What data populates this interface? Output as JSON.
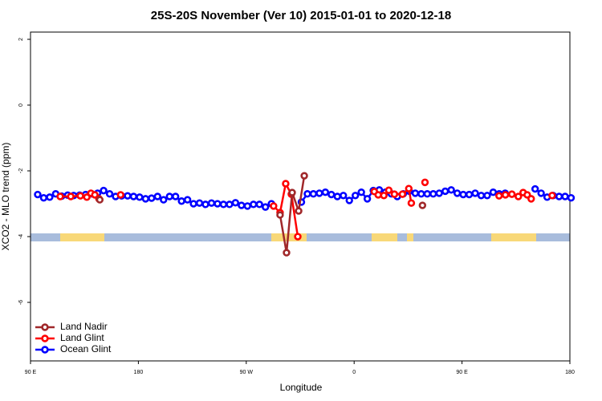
{
  "chart_data": {
    "type": "line",
    "title": "25S-20S November (Ver 10)   2015-01-01 to 2020-12-18",
    "x_label": "Longitude",
    "y_label": "XCO2 - MLO trend (ppm)",
    "xlim": [
      90,
      540
    ],
    "ylim": [
      -7.78,
      2.22
    ],
    "xticks": [
      {
        "value": 90,
        "label": "90 E"
      },
      180,
      {
        "value": 270,
        "label": "90 W"
      },
      {
        "value": 360,
        "label": "0"
      },
      {
        "value": 450,
        "label": "90 E"
      },
      {
        "value": 540,
        "label": "180"
      }
    ],
    "yticks": [
      2,
      0,
      -2,
      -4,
      -6
    ],
    "legend": "lower left",
    "series": [
      {
        "name": "Ocean Glint",
        "color": "#0000ff",
        "x": [
          96,
          101,
          106,
          111,
          116,
          121,
          126,
          131,
          136,
          141,
          146,
          151,
          156,
          161,
          166,
          171,
          176,
          181,
          186,
          191,
          196,
          201,
          206,
          211,
          216,
          221,
          226,
          231,
          236,
          241,
          246,
          251,
          256,
          261,
          266,
          271,
          276,
          281,
          286,
          291,
          null,
          316,
          321,
          326,
          331,
          336,
          341,
          346,
          351,
          356,
          361,
          366,
          371,
          376,
          381,
          386,
          391,
          396,
          401,
          406,
          411,
          416,
          421,
          426,
          431,
          436,
          441,
          446,
          451,
          456,
          461,
          466,
          471,
          476,
          481,
          486,
          null,
          511,
          516,
          521,
          526,
          531,
          536,
          541
        ],
        "values": [
          -2.72,
          -2.82,
          -2.8,
          -2.7,
          -2.77,
          -2.74,
          -2.75,
          -2.74,
          -2.72,
          -2.7,
          -2.68,
          -2.6,
          -2.7,
          -2.78,
          -2.76,
          -2.76,
          -2.78,
          -2.8,
          -2.85,
          -2.83,
          -2.78,
          -2.88,
          -2.78,
          -2.78,
          -2.92,
          -2.88,
          -3.0,
          -2.98,
          -3.02,
          -2.98,
          -3.0,
          -3.02,
          -3.02,
          -2.97,
          -3.05,
          -3.07,
          -3.02,
          -3.02,
          -3.1,
          -3.0,
          null,
          -2.95,
          -2.7,
          -2.7,
          -2.68,
          -2.65,
          -2.72,
          -2.78,
          -2.75,
          -2.9,
          -2.75,
          -2.65,
          -2.85,
          -2.6,
          -2.58,
          -2.65,
          -2.7,
          -2.78,
          -2.7,
          -2.62,
          -2.68,
          -2.7,
          -2.7,
          -2.7,
          -2.68,
          -2.62,
          -2.58,
          -2.68,
          -2.72,
          -2.72,
          -2.68,
          -2.75,
          -2.75,
          -2.65,
          -2.7,
          -2.68,
          null,
          -2.55,
          -2.68,
          -2.8,
          -2.75,
          -2.78,
          -2.78,
          -2.82
        ]
      },
      {
        "name": "Land Glint",
        "color": "#ff0000",
        "x": [
          114.8,
          123.6,
          131.6,
          137,
          140.4,
          143.7,
          147.1,
          null,
          165.2,
          null,
          292.8,
          298.2,
          302.9,
          307.6,
          313,
          null,
          376.8,
          380.1,
          384.8,
          388.9,
          393.6,
          400.3,
          405.6,
          407.7,
          null,
          419.1,
          null,
          480.9,
          486.2,
          491.6,
          497,
          501,
          504.4,
          507.7,
          null,
          525.2
        ],
        "values": [
          -2.78,
          -2.78,
          -2.76,
          -2.8,
          -2.68,
          -2.73,
          -2.85,
          null,
          -2.73,
          null,
          -3.07,
          -3.27,
          -2.39,
          -2.71,
          -4.0,
          null,
          -2.63,
          -2.73,
          -2.75,
          -2.59,
          -2.71,
          -2.71,
          -2.54,
          -2.98,
          null,
          -2.35,
          null,
          -2.76,
          -2.73,
          -2.71,
          -2.78,
          -2.66,
          -2.73,
          -2.85,
          null,
          -2.75
        ]
      },
      {
        "name": "Land Nadir",
        "color": "#a0282a",
        "x": [
          147.8,
          null,
          298.2,
          303.6,
          308.3,
          313.7,
          318.4,
          null,
          417
        ],
        "values": [
          -2.88,
          null,
          -3.34,
          -4.49,
          -2.66,
          -3.22,
          -2.15,
          null,
          -3.05
        ]
      }
    ]
  }
}
